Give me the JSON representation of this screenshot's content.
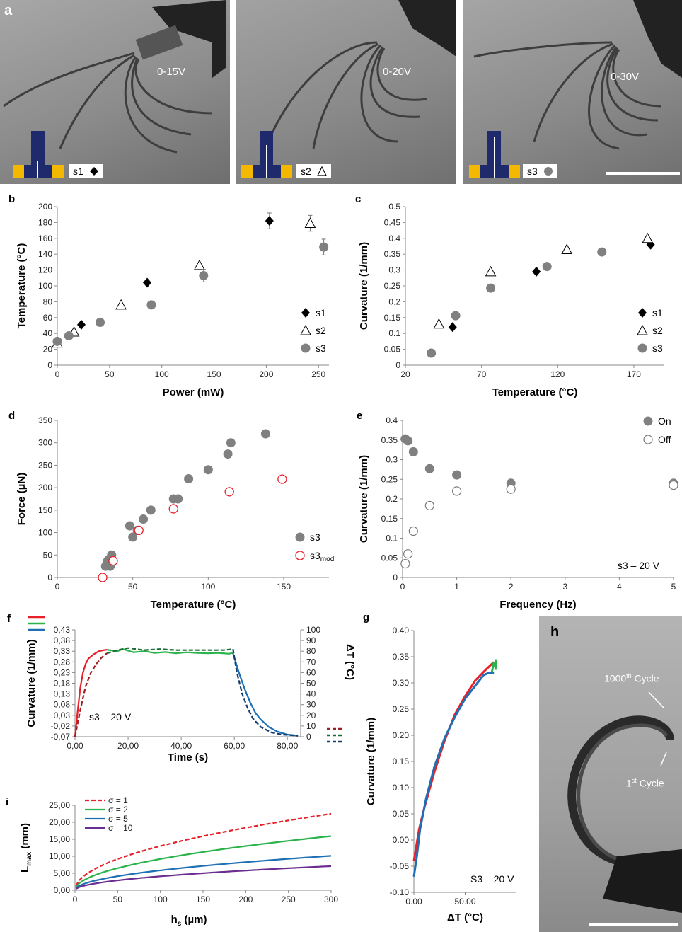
{
  "panels": {
    "a": {
      "letter": "a",
      "photos": [
        {
          "voltage": "0-15V",
          "sample": "s1"
        },
        {
          "voltage": "0-20V",
          "sample": "s2"
        },
        {
          "voltage": "0-30V",
          "sample": "s3"
        }
      ],
      "colors": {
        "navy": "#1e2a6b",
        "gold": "#f5b800"
      }
    },
    "h": {
      "letter": "h",
      "label_1000": "1000",
      "label_1000_sup": "th",
      "label_1000_rest": " Cycle",
      "label_1": "1",
      "label_1_sup": "st",
      "label_1_rest": " Cycle"
    }
  },
  "chart_data": [
    {
      "id": "b",
      "letter": "b",
      "type": "scatter",
      "xlabel": "Power (mW)",
      "ylabel": "Temperature (°C)",
      "xlim": [
        0,
        260
      ],
      "ylim": [
        0,
        200
      ],
      "xticks": [
        0,
        50,
        100,
        150,
        200,
        250
      ],
      "yticks": [
        0,
        20,
        40,
        60,
        80,
        100,
        120,
        140,
        160,
        180,
        200
      ],
      "legend": "right",
      "series": [
        {
          "name": "s1",
          "marker": "diamond",
          "points": [
            [
              23,
              51
            ],
            [
              86,
              104
            ],
            [
              203,
              182
            ]
          ],
          "err": [
            0,
            0,
            10
          ]
        },
        {
          "name": "s2",
          "marker": "triangle",
          "points": [
            [
              0,
              28
            ],
            [
              16,
              42
            ],
            [
              61,
              76
            ],
            [
              136,
              126
            ],
            [
              242,
              179
            ]
          ],
          "err": [
            0,
            0,
            0,
            0,
            10
          ]
        },
        {
          "name": "s3",
          "marker": "circle",
          "points": [
            [
              0,
              30
            ],
            [
              11,
              37
            ],
            [
              41,
              54
            ],
            [
              90,
              76
            ],
            [
              140,
              113
            ],
            [
              255,
              149
            ]
          ],
          "err": [
            0,
            0,
            0,
            0,
            8,
            10
          ]
        }
      ]
    },
    {
      "id": "c",
      "letter": "c",
      "type": "scatter",
      "xlabel": "Temperature (°C)",
      "ylabel": "Curvature (1/mm)",
      "xlim": [
        20,
        190
      ],
      "ylim": [
        0,
        0.5
      ],
      "xticks": [
        20,
        70,
        120,
        170
      ],
      "yticks": [
        0,
        0.05,
        0.1,
        0.15,
        0.2,
        0.25,
        0.3,
        0.35,
        0.4,
        0.45,
        0.5
      ],
      "legend": "right",
      "series": [
        {
          "name": "s1",
          "marker": "diamond",
          "points": [
            [
              51,
              0.12
            ],
            [
              106,
              0.295
            ],
            [
              181,
              0.38
            ]
          ]
        },
        {
          "name": "s2",
          "marker": "triangle",
          "points": [
            [
              42,
              0.13
            ],
            [
              76,
              0.295
            ],
            [
              126,
              0.365
            ],
            [
              179,
              0.4
            ]
          ]
        },
        {
          "name": "s3",
          "marker": "circle",
          "points": [
            [
              37,
              0.038
            ],
            [
              53,
              0.156
            ],
            [
              76,
              0.243
            ],
            [
              113,
              0.311
            ],
            [
              149,
              0.357
            ]
          ]
        }
      ]
    },
    {
      "id": "d",
      "letter": "d",
      "type": "scatter",
      "xlabel": "Temperature (°C)",
      "ylabel": "Force (µN)",
      "xlim": [
        0,
        180
      ],
      "ylim": [
        0,
        350
      ],
      "xticks": [
        0,
        50,
        100,
        150
      ],
      "yticks": [
        0,
        50,
        100,
        150,
        200,
        250,
        300,
        350
      ],
      "legend": "bottom-right",
      "series": [
        {
          "name": "s3",
          "marker": "circle",
          "points": [
            [
              32,
              25
            ],
            [
              33,
              35
            ],
            [
              34,
              40
            ],
            [
              35,
              25
            ],
            [
              36,
              50
            ],
            [
              48,
              115
            ],
            [
              50,
              90
            ],
            [
              53,
              105
            ],
            [
              57,
              130
            ],
            [
              62,
              150
            ],
            [
              77,
              175
            ],
            [
              80,
              175
            ],
            [
              87,
              220
            ],
            [
              100,
              240
            ],
            [
              113,
              275
            ],
            [
              115,
              300
            ],
            [
              138,
              320
            ]
          ]
        },
        {
          "name": "s3",
          "name_sub": "mod",
          "marker": "open-circle-red",
          "points": [
            [
              30,
              0
            ],
            [
              37,
              37
            ],
            [
              54,
              105
            ],
            [
              77,
              153
            ],
            [
              114,
              191
            ],
            [
              149,
              219
            ]
          ]
        }
      ]
    },
    {
      "id": "e",
      "letter": "e",
      "type": "scatter",
      "xlabel": "Frequency (Hz)",
      "ylabel": "Curvature (1/mm)",
      "xlim": [
        0,
        5
      ],
      "ylim": [
        0,
        0.4
      ],
      "xticks": [
        0,
        1,
        2,
        3,
        4,
        5
      ],
      "yticks": [
        0,
        0.05,
        0.1,
        0.15,
        0.2,
        0.25,
        0.3,
        0.35,
        0.4
      ],
      "legend": "top-right",
      "annotation": "s3 – 20 V",
      "series": [
        {
          "name": "On",
          "marker": "circle",
          "points": [
            [
              0.05,
              0.353
            ],
            [
              0.1,
              0.348
            ],
            [
              0.2,
              0.32
            ],
            [
              0.5,
              0.277
            ],
            [
              1,
              0.261
            ],
            [
              2,
              0.24
            ],
            [
              5,
              0.24
            ]
          ]
        },
        {
          "name": "Off",
          "marker": "open-circle",
          "points": [
            [
              0.05,
              0.035
            ],
            [
              0.1,
              0.06
            ],
            [
              0.2,
              0.118
            ],
            [
              0.5,
              0.183
            ],
            [
              1,
              0.22
            ],
            [
              2,
              0.225
            ],
            [
              5,
              0.235
            ]
          ]
        }
      ]
    },
    {
      "id": "f",
      "letter": "f",
      "type": "line",
      "xlabel": "Time (s)",
      "ylabel": "Curvature (1/mm)",
      "y2label": "ΔT (°C)",
      "xlim": [
        0,
        85
      ],
      "ylim": [
        -0.07,
        0.43
      ],
      "y2lim": [
        0,
        100
      ],
      "xticks": [
        0,
        20,
        40,
        60,
        80
      ],
      "xtick_labels": [
        "0,00",
        "20,00",
        "40,00",
        "60,00",
        "80,00"
      ],
      "yticks": [
        -0.07,
        -0.02,
        0.03,
        0.08,
        0.13,
        0.18,
        0.23,
        0.28,
        0.33,
        0.38,
        0.43
      ],
      "ytick_labels": [
        "-0,07",
        "-0,02",
        "0,03",
        "0,08",
        "0,13",
        "0,18",
        "0,23",
        "0,28",
        "0,33",
        "0,38",
        "0,43"
      ],
      "y2ticks": [
        0,
        10,
        20,
        30,
        40,
        50,
        60,
        70,
        80,
        90,
        100
      ],
      "annotation": "s3 – 20 V",
      "series": [
        {
          "color": "#e8202a",
          "style": "solid",
          "axis": "left",
          "points": [
            [
              0,
              -0.07
            ],
            [
              1,
              0.05
            ],
            [
              2,
              0.16
            ],
            [
              3,
              0.23
            ],
            [
              4,
              0.27
            ],
            [
              5,
              0.295
            ],
            [
              7,
              0.315
            ],
            [
              9,
              0.33
            ],
            [
              11,
              0.335
            ],
            [
              12,
              0.337
            ]
          ]
        },
        {
          "color": "#2bb34b",
          "style": "solid",
          "axis": "left",
          "points": [
            [
              12,
              0.337
            ],
            [
              16,
              0.33
            ],
            [
              18,
              0.34
            ],
            [
              22,
              0.325
            ],
            [
              26,
              0.33
            ],
            [
              30,
              0.322
            ],
            [
              34,
              0.326
            ],
            [
              38,
              0.32
            ],
            [
              42,
              0.325
            ],
            [
              46,
              0.322
            ],
            [
              50,
              0.32
            ],
            [
              54,
              0.322
            ],
            [
              58,
              0.318
            ],
            [
              59.5,
              0.322
            ]
          ]
        },
        {
          "color": "#1f6fb4",
          "style": "solid",
          "axis": "left",
          "points": [
            [
              59.5,
              0.32
            ],
            [
              60.5,
              0.28
            ],
            [
              62,
              0.22
            ],
            [
              64,
              0.15
            ],
            [
              66,
              0.09
            ],
            [
              68,
              0.04
            ],
            [
              70,
              0.01
            ],
            [
              73,
              -0.025
            ],
            [
              76,
              -0.045
            ],
            [
              80,
              -0.06
            ],
            [
              84,
              -0.065
            ]
          ]
        },
        {
          "color": "#a01d24",
          "style": "dashed",
          "axis": "right",
          "points": [
            [
              0,
              0
            ],
            [
              2,
              25
            ],
            [
              4,
              47
            ],
            [
              6,
              60
            ],
            [
              8,
              68
            ],
            [
              10,
              74
            ],
            [
              12,
              78
            ]
          ]
        },
        {
          "color": "#1a6b35",
          "style": "dashed",
          "axis": "right",
          "points": [
            [
              12,
              78
            ],
            [
              16,
              81
            ],
            [
              20,
              83
            ],
            [
              26,
              81
            ],
            [
              32,
              82
            ],
            [
              38,
              81
            ],
            [
              44,
              81
            ],
            [
              50,
              81
            ],
            [
              56,
              81
            ],
            [
              59.5,
              82
            ]
          ]
        },
        {
          "color": "#123c6b",
          "style": "dashed",
          "axis": "right",
          "points": [
            [
              59.5,
              82
            ],
            [
              61,
              60
            ],
            [
              63,
              40
            ],
            [
              65,
              27
            ],
            [
              67,
              17
            ],
            [
              70,
              9
            ],
            [
              74,
              4
            ],
            [
              78,
              2
            ],
            [
              84,
              1
            ]
          ]
        }
      ]
    },
    {
      "id": "g",
      "letter": "g",
      "type": "line",
      "xlabel": "ΔT (°C)",
      "ylabel": "Curvature (1/mm)",
      "xlim": [
        0,
        100
      ],
      "ylim": [
        -0.1,
        0.4
      ],
      "xticks": [
        0,
        50
      ],
      "xtick_labels": [
        "0.00",
        "50.00"
      ],
      "yticks": [
        -0.1,
        -0.05,
        0,
        0.05,
        0.1,
        0.15,
        0.2,
        0.25,
        0.3,
        0.35,
        0.4
      ],
      "ytick_labels": [
        "-0.10",
        "-0.05",
        "0.00",
        "0.05",
        "0.10",
        "0.15",
        "0.20",
        "0.25",
        "0.30",
        "0.35",
        "0.40"
      ],
      "annotation": "S3 – 20 V",
      "series": [
        {
          "color": "#e8202a",
          "style": "solid",
          "points": [
            [
              0,
              -0.04
            ],
            [
              5,
              0.02
            ],
            [
              10,
              0.06
            ],
            [
              20,
              0.13
            ],
            [
              30,
              0.19
            ],
            [
              40,
              0.24
            ],
            [
              50,
              0.275
            ],
            [
              60,
              0.305
            ],
            [
              70,
              0.325
            ],
            [
              78,
              0.34
            ]
          ]
        },
        {
          "color": "#1f6fb4",
          "style": "solid",
          "points": [
            [
              0,
              -0.07
            ],
            [
              3,
              -0.03
            ],
            [
              6,
              0.02
            ],
            [
              12,
              0.08
            ],
            [
              20,
              0.14
            ],
            [
              30,
              0.195
            ],
            [
              40,
              0.235
            ],
            [
              50,
              0.27
            ],
            [
              60,
              0.295
            ],
            [
              68,
              0.315
            ],
            [
              74,
              0.32
            ],
            [
              78,
              0.318
            ]
          ]
        },
        {
          "color": "#2bb34b",
          "style": "solid",
          "points": [
            [
              76,
              0.32
            ],
            [
              78,
              0.34
            ],
            [
              79,
              0.33
            ],
            [
              80,
              0.345
            ],
            [
              79.5,
              0.325
            ]
          ]
        }
      ]
    },
    {
      "id": "i",
      "letter": "i",
      "type": "line",
      "xlabel": "h",
      "xlabel_sub": "s",
      "xlabel_rest": " (µm)",
      "ylabel": "L",
      "ylabel_sub": "max",
      "ylabel_rest": " (mm)",
      "xlim": [
        0,
        300
      ],
      "ylim": [
        0,
        25
      ],
      "xticks": [
        0,
        50,
        100,
        150,
        200,
        250,
        300
      ],
      "yticks": [
        0,
        5,
        10,
        15,
        20,
        25
      ],
      "ytick_labels": [
        "0,00",
        "5,00",
        "10,00",
        "15,00",
        "20,00",
        "25,00"
      ],
      "legend": "top-left",
      "series": [
        {
          "name": "σ = 1",
          "color": "#e8202a",
          "style": "dashed",
          "scale": 1.3
        },
        {
          "name": "σ = 2",
          "color": "#2bb34b",
          "style": "solid",
          "scale": 0.92
        },
        {
          "name": "σ = 5",
          "color": "#1f6fb4",
          "style": "solid",
          "scale": 0.585
        },
        {
          "name": "σ = 10",
          "color": "#6b2d8f",
          "style": "solid",
          "scale": 0.41
        }
      ]
    }
  ]
}
